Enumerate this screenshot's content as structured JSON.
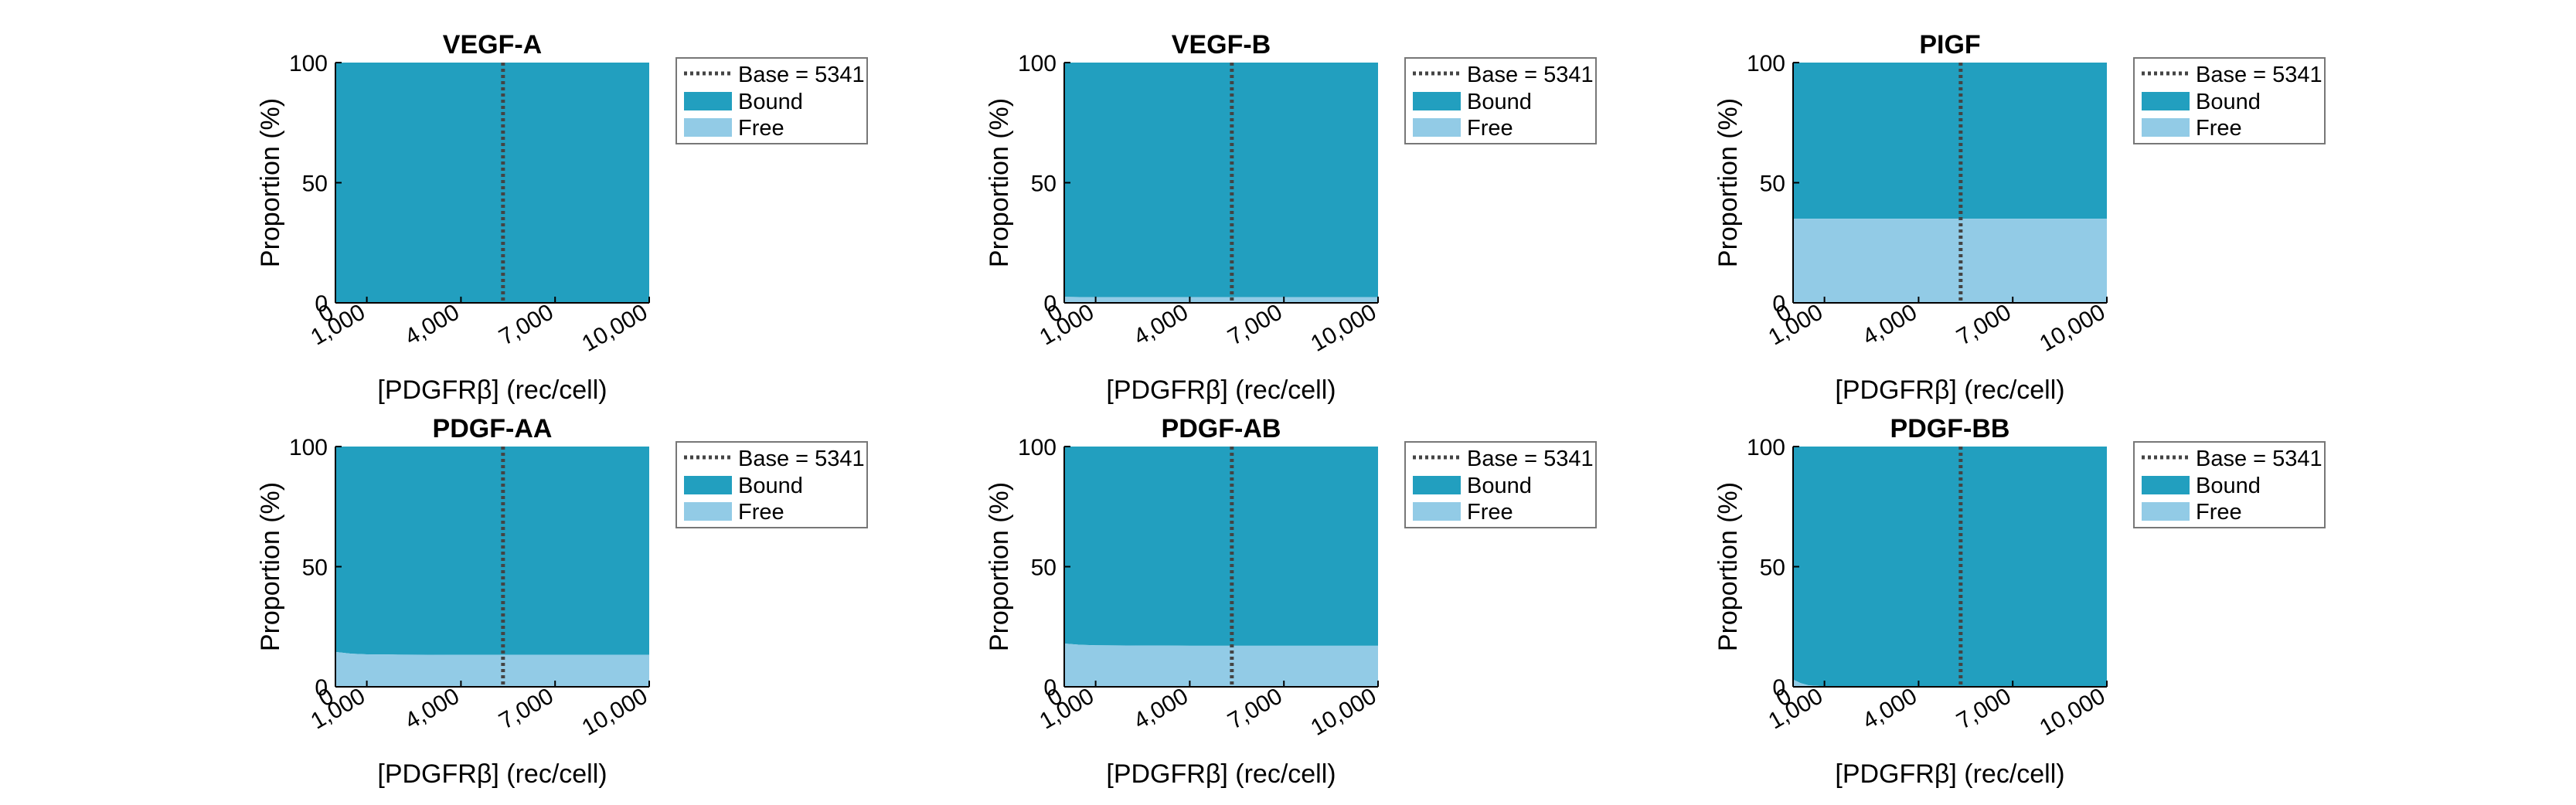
{
  "colors": {
    "bound": "#229fbf",
    "free": "#92cbe6",
    "baseline": "#444444",
    "axis": "#000000"
  },
  "chart_data": [
    {
      "type": "area",
      "title": "VEGF-A",
      "xlabel": "[PDGFRβ] (rec/cell)",
      "ylabel": "Proportion (%)",
      "xlim": [
        0,
        10000
      ],
      "ylim": [
        0,
        100
      ],
      "xticks": [
        0,
        1000,
        4000,
        7000,
        10000
      ],
      "xtick_labels": [
        "0",
        "1,000",
        "4,000",
        "7,000",
        "10,000"
      ],
      "yticks": [
        0,
        50,
        100
      ],
      "baseline": {
        "x": 5341,
        "label": "Base = 5341"
      },
      "x": [
        0,
        500,
        1000,
        2000,
        4000,
        5341,
        7000,
        10000
      ],
      "series": [
        {
          "name": "Bound",
          "values": [
            100,
            100,
            100,
            100,
            100,
            100,
            100,
            100
          ]
        },
        {
          "name": "Free",
          "values": [
            0,
            0,
            0,
            0,
            0,
            0,
            0,
            0
          ]
        }
      ],
      "legend": "outside-top-right"
    },
    {
      "type": "area",
      "title": "VEGF-B",
      "xlabel": "[PDGFRβ] (rec/cell)",
      "ylabel": "Proportion (%)",
      "xlim": [
        0,
        10000
      ],
      "ylim": [
        0,
        100
      ],
      "xticks": [
        0,
        1000,
        4000,
        7000,
        10000
      ],
      "xtick_labels": [
        "0",
        "1,000",
        "4,000",
        "7,000",
        "10,000"
      ],
      "yticks": [
        0,
        50,
        100
      ],
      "baseline": {
        "x": 5341,
        "label": "Base = 5341"
      },
      "x": [
        0,
        500,
        1000,
        2000,
        4000,
        5341,
        7000,
        10000
      ],
      "series": [
        {
          "name": "Bound",
          "values": [
            97.5,
            97.6,
            97.6,
            97.6,
            97.6,
            97.6,
            97.6,
            97.6
          ]
        },
        {
          "name": "Free",
          "values": [
            2.5,
            2.4,
            2.4,
            2.4,
            2.4,
            2.4,
            2.4,
            2.4
          ]
        }
      ],
      "legend": "outside-top-right"
    },
    {
      "type": "area",
      "title": "PIGF",
      "xlabel": "[PDGFRβ] (rec/cell)",
      "ylabel": "Proportion (%)",
      "xlim": [
        0,
        10000
      ],
      "ylim": [
        0,
        100
      ],
      "xticks": [
        0,
        1000,
        4000,
        7000,
        10000
      ],
      "xtick_labels": [
        "0",
        "1,000",
        "4,000",
        "7,000",
        "10,000"
      ],
      "yticks": [
        0,
        50,
        100
      ],
      "baseline": {
        "x": 5341,
        "label": "Base = 5341"
      },
      "x": [
        0,
        500,
        1000,
        2000,
        4000,
        5341,
        7000,
        10000
      ],
      "series": [
        {
          "name": "Bound",
          "values": [
            65,
            65,
            65,
            65,
            65,
            65,
            65,
            65
          ]
        },
        {
          "name": "Free",
          "values": [
            35,
            35,
            35,
            35,
            35,
            35,
            35,
            35
          ]
        }
      ],
      "legend": "outside-top-right"
    },
    {
      "type": "area",
      "title": "PDGF-AA",
      "xlabel": "[PDGFRβ] (rec/cell)",
      "ylabel": "Proportion (%)",
      "xlim": [
        0,
        10000
      ],
      "ylim": [
        0,
        100
      ],
      "xticks": [
        0,
        1000,
        4000,
        7000,
        10000
      ],
      "xtick_labels": [
        "0",
        "1,000",
        "4,000",
        "7,000",
        "10,000"
      ],
      "yticks": [
        0,
        50,
        100
      ],
      "baseline": {
        "x": 5341,
        "label": "Base = 5341"
      },
      "x": [
        0,
        500,
        1000,
        2000,
        4000,
        5341,
        7000,
        10000
      ],
      "series": [
        {
          "name": "Bound",
          "values": [
            85.5,
            86.2,
            86.5,
            86.6,
            86.7,
            86.7,
            86.7,
            86.7
          ]
        },
        {
          "name": "Free",
          "values": [
            14.5,
            13.8,
            13.5,
            13.4,
            13.3,
            13.3,
            13.3,
            13.3
          ]
        }
      ],
      "legend": "outside-top-right"
    },
    {
      "type": "area",
      "title": "PDGF-AB",
      "xlabel": "[PDGFRβ] (rec/cell)",
      "ylabel": "Proportion (%)",
      "xlim": [
        0,
        10000
      ],
      "ylim": [
        0,
        100
      ],
      "xticks": [
        0,
        1000,
        4000,
        7000,
        10000
      ],
      "xtick_labels": [
        "0",
        "1,000",
        "4,000",
        "7,000",
        "10,000"
      ],
      "yticks": [
        0,
        50,
        100
      ],
      "baseline": {
        "x": 5341,
        "label": "Base = 5341"
      },
      "x": [
        0,
        500,
        1000,
        2000,
        4000,
        5341,
        7000,
        10000
      ],
      "series": [
        {
          "name": "Bound",
          "values": [
            82,
            82.5,
            82.7,
            82.8,
            82.9,
            82.9,
            82.9,
            82.9
          ]
        },
        {
          "name": "Free",
          "values": [
            18,
            17.5,
            17.3,
            17.2,
            17.1,
            17.1,
            17.1,
            17.1
          ]
        }
      ],
      "legend": "outside-top-right"
    },
    {
      "type": "area",
      "title": "PDGF-BB",
      "xlabel": "[PDGFRβ] (rec/cell)",
      "ylabel": "Proportion (%)",
      "xlim": [
        0,
        10000
      ],
      "ylim": [
        0,
        100
      ],
      "xticks": [
        0,
        1000,
        4000,
        7000,
        10000
      ],
      "xtick_labels": [
        "0",
        "1,000",
        "4,000",
        "7,000",
        "10,000"
      ],
      "yticks": [
        0,
        50,
        100
      ],
      "baseline": {
        "x": 5341,
        "label": "Base = 5341"
      },
      "x": [
        0,
        250,
        500,
        1000,
        2000,
        4000,
        5341,
        7000,
        10000
      ],
      "series": [
        {
          "name": "Bound",
          "values": [
            97,
            98.5,
            99.4,
            99.8,
            100,
            100,
            100,
            100,
            100
          ]
        },
        {
          "name": "Free",
          "values": [
            3,
            1.5,
            0.6,
            0.2,
            0,
            0,
            0,
            0,
            0
          ]
        }
      ],
      "legend": "outside-top-right"
    }
  ]
}
